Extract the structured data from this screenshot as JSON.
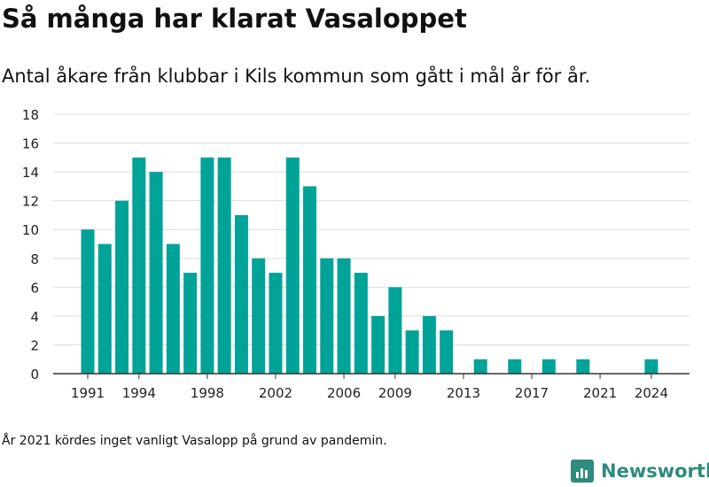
{
  "title": "Så många har klarat Vasaloppet",
  "subtitle": "Antal åkare från klubbar i Kils kommun som gått i mål år för år.",
  "footnote": "År 2021 kördes inget vanligt Vasalopp på grund av pandemin.",
  "brand": {
    "name": "Newsworthy",
    "icon": "newsworthy-logo-icon",
    "color": "#2e8b7e"
  },
  "colors": {
    "bar": "#00a398",
    "grid": "#dedede",
    "axis": "#333333"
  },
  "chart_data": {
    "type": "bar",
    "title": "",
    "xlabel": "",
    "ylabel": "",
    "x": [
      1991,
      1992,
      1993,
      1994,
      1995,
      1996,
      1997,
      1998,
      1999,
      2000,
      2001,
      2002,
      2003,
      2004,
      2005,
      2006,
      2007,
      2008,
      2009,
      2010,
      2011,
      2012,
      2013,
      2014,
      2015,
      2016,
      2017,
      2018,
      2019,
      2020,
      2021,
      2022,
      2023,
      2024
    ],
    "values": [
      10,
      9,
      12,
      15,
      14,
      9,
      7,
      15,
      15,
      11,
      8,
      7,
      15,
      13,
      8,
      8,
      7,
      4,
      6,
      3,
      4,
      3,
      0,
      1,
      0,
      1,
      0,
      1,
      0,
      1,
      0,
      0,
      0,
      1
    ],
    "xticks": [
      "1991",
      "1994",
      "1998",
      "2002",
      "2006",
      "2009",
      "2013",
      "2017",
      "2021",
      "2024"
    ],
    "yticks": [
      "0",
      "2",
      "4",
      "6",
      "8",
      "10",
      "12",
      "14",
      "16",
      "18"
    ],
    "ylim": [
      0,
      18
    ],
    "grid": true,
    "legend": "none"
  }
}
